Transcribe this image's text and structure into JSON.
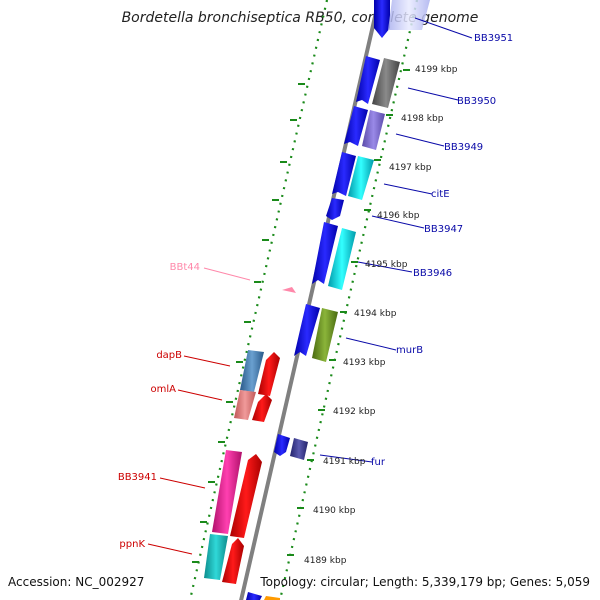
{
  "title": "Bordetella bronchiseptica RB50, complete genome",
  "footer": {
    "accession": "Accession: NC_002927",
    "topology": "Topology: circular; Length: 5,339,179 bp; Genes: 5,059"
  },
  "ticks": [
    "4199 kbp",
    "4198 kbp",
    "4197 kbp",
    "4196 kbp",
    "4195 kbp",
    "4194 kbp",
    "4193 kbp",
    "4192 kbp",
    "4191 kbp",
    "4190 kbp",
    "4189 kbp"
  ],
  "labels": {
    "right": [
      "BB3951",
      "BB3950",
      "BB3949",
      "citE",
      "BB3947",
      "BB3946",
      "murB",
      "fur"
    ],
    "left": [
      "BBt44",
      "dapB",
      "omlA",
      "BB3941",
      "ppnK"
    ]
  },
  "colors": {
    "forward_label": "#0a0aa8",
    "reverse_label": "#cc0000",
    "trna_label": "#ff88aa",
    "backbone": "#808080",
    "dots": "#1a8a1a"
  }
}
